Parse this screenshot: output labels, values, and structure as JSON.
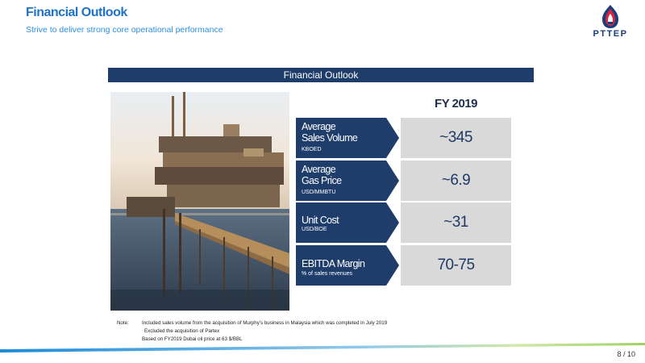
{
  "header": {
    "title": "Financial Outlook",
    "subtitle": "Strive to deliver strong core operational performance"
  },
  "logo": {
    "text": "PTTEP",
    "icon": "pttep-flame-logo-icon"
  },
  "banner": {
    "label": "Financial Outlook"
  },
  "photo": {
    "icon": "offshore-platform-photo"
  },
  "column_header": "FY 2019",
  "metrics": [
    {
      "title_line1": "Average",
      "title_line2": "Sales Volume",
      "unit": "KBOED",
      "value": "~345"
    },
    {
      "title_line1": "Average",
      "title_line2": "Gas Price",
      "unit": "USD/MMBTU",
      "value": "~6.9"
    },
    {
      "title_line1": "Unit Cost",
      "title_line2": "",
      "unit": "USD/BOE",
      "value": "~31"
    },
    {
      "title_line1": "EBITDA Margin",
      "title_line2": "",
      "unit": "% of sales revenues",
      "value": "70-75"
    }
  ],
  "notes": {
    "label": "Note:",
    "lines": [
      "Included sales volume from the acquisition of Murphy's business in Malaysia which was completed in July 2019",
      "Excluded the acquisition of Partex",
      "Based on FY2019 Dubai oil price at 63 $/BBL"
    ]
  },
  "footer": {
    "page": "8 / 10"
  },
  "colors": {
    "title_blue": "#1e73c8",
    "navy": "#1f3d6b",
    "value_bg": "#d9d9d9"
  }
}
